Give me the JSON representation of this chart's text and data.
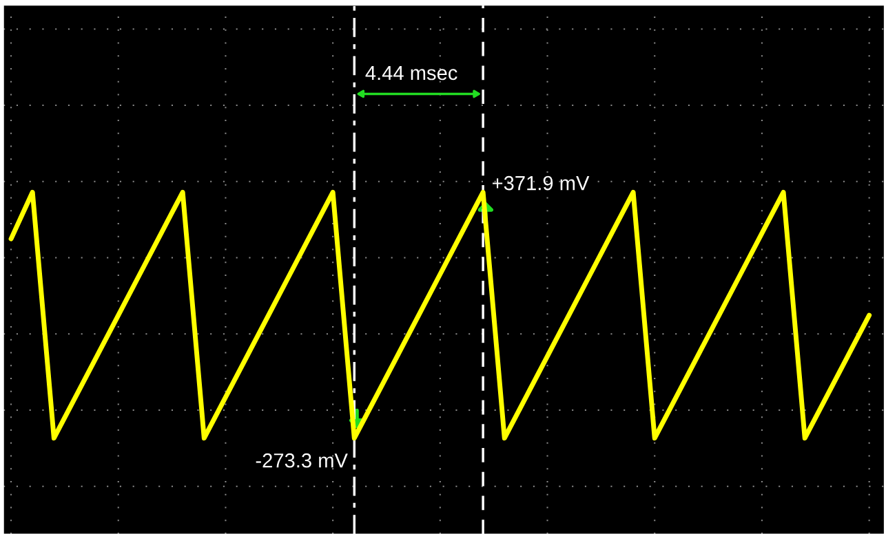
{
  "chart_data": {
    "type": "line",
    "categories": [
      null,
      null,
      null,
      null,
      null,
      null,
      null,
      null,
      null,
      null,
      null,
      null,
      null,
      null,
      null,
      null,
      null,
      null,
      null,
      null,
      null,
      null,
      null,
      null,
      null,
      null,
      null,
      null,
      null,
      null,
      null,
      null,
      null,
      null,
      null,
      null,
      null,
      null,
      null,
      null,
      null
    ],
    "series": [
      {
        "color": "#ffff00",
        "values": [
          249.5,
          371.9,
          -273.3,
          -165.8,
          -58.3,
          49.2,
          156.7,
          264.4,
          371.9,
          -273.3,
          -165.8,
          -58.3,
          49.2,
          156.7,
          264.4,
          371.9,
          -273.3,
          -165.8,
          -58.3,
          49.2,
          156.7,
          264.4,
          371.9,
          -273.3,
          -165.8,
          -58.3,
          49.2,
          156.7,
          264.4,
          371.9,
          -273.3,
          -165.8,
          -58.3,
          49.2,
          156.7,
          264.4,
          371.9,
          -273.3,
          -165.8,
          -58.3,
          49.2
        ],
        "value_labels": [
          null,
          null,
          null,
          null,
          null,
          null,
          null,
          null,
          null,
          null,
          null,
          null,
          null,
          null,
          null,
          null,
          "-273.3 mV",
          null,
          null,
          null,
          null,
          null,
          "+371.9 mV",
          null,
          null,
          null,
          null,
          null,
          null,
          null,
          null,
          null,
          null,
          null,
          null,
          null,
          null,
          null,
          null,
          null,
          null
        ]
      }
    ],
    "annotations": [
      "4.44 msec"
    ],
    "grid": true,
    "marker": "none",
    "line_style": "solid"
  }
}
